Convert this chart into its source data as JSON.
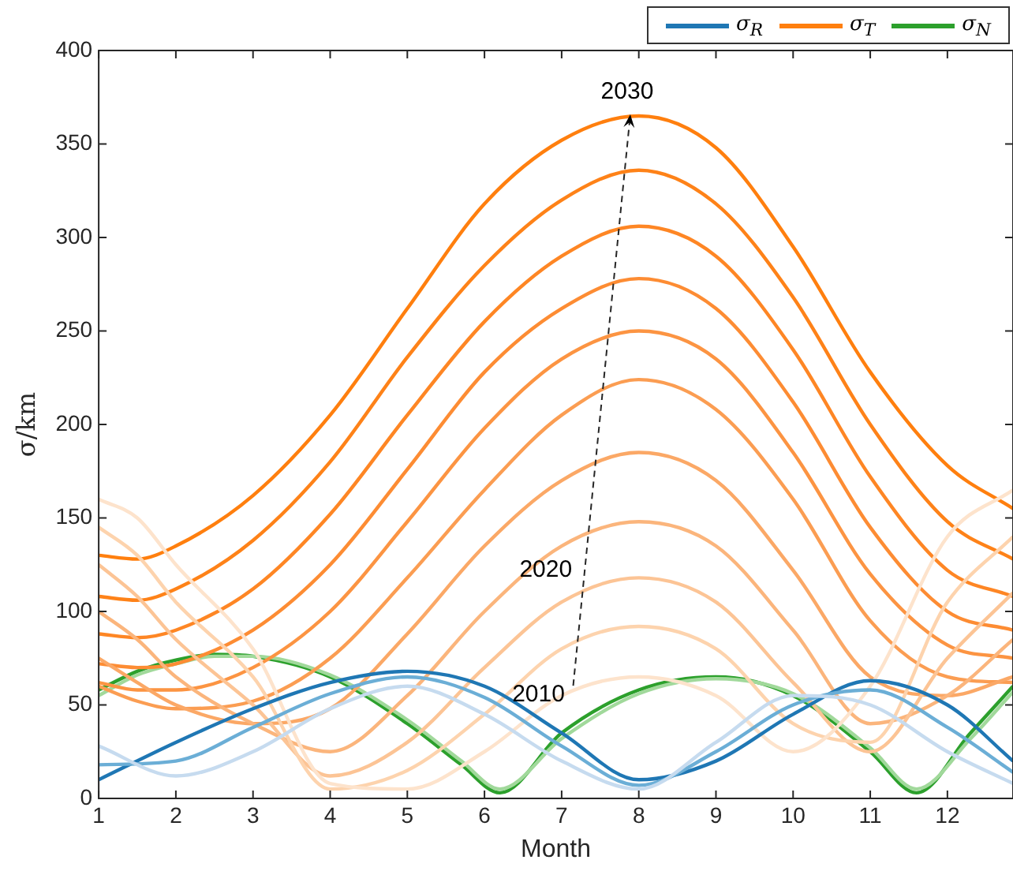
{
  "chart_data": {
    "type": "line",
    "xlabel": "Month",
    "ylabel": "σ/km",
    "xlim": [
      1,
      12.85
    ],
    "ylim": [
      0,
      400
    ],
    "xticks": [
      1,
      2,
      3,
      4,
      5,
      6,
      7,
      8,
      9,
      10,
      11,
      12
    ],
    "yticks": [
      0,
      50,
      100,
      150,
      200,
      250,
      300,
      350,
      400
    ],
    "grid": false,
    "legend": "top right",
    "marker": "none",
    "line_style": "solid",
    "x": [
      1,
      1.5,
      2,
      3,
      4,
      5,
      6,
      7,
      8,
      9,
      10,
      11,
      12,
      12.85
    ],
    "series": [
      {
        "color": "#c6dbef",
        "x": [
          1,
          2,
          3,
          4,
          5,
          6,
          7,
          8,
          9,
          10,
          11,
          12,
          12.85
        ],
        "values": [
          28,
          12,
          25,
          48,
          60,
          45,
          20,
          5,
          30,
          55,
          50,
          25,
          8
        ]
      },
      {
        "color": "#6baed6",
        "x": [
          1,
          2,
          3,
          4,
          5,
          6,
          7,
          8,
          9,
          10,
          11,
          12,
          12.85
        ],
        "values": [
          18,
          20,
          38,
          56,
          65,
          54,
          28,
          7,
          25,
          50,
          58,
          38,
          14
        ]
      },
      {
        "name": "σ$_{R}$",
        "color": "#1f77b4",
        "x": [
          1,
          2,
          3,
          4,
          5,
          6,
          7,
          8,
          9,
          10,
          11,
          12,
          12.85
        ],
        "values": [
          10,
          30,
          48,
          62,
          68,
          60,
          35,
          10,
          20,
          45,
          63,
          50,
          20
        ]
      },
      {
        "color": "#fde3cc",
        "values": [
          160,
          150,
          125,
          80,
          8,
          5,
          25,
          55,
          65,
          55,
          25,
          60,
          140,
          165
        ]
      },
      {
        "color": "#fdd3ad",
        "values": [
          145,
          130,
          105,
          65,
          5,
          15,
          45,
          80,
          92,
          80,
          40,
          30,
          105,
          140
        ]
      },
      {
        "color": "#fcc495",
        "values": [
          125,
          108,
          85,
          50,
          12,
          30,
          70,
          105,
          118,
          105,
          62,
          25,
          75,
          110
        ]
      },
      {
        "color": "#fbb57c",
        "values": [
          100,
          85,
          65,
          40,
          25,
          55,
          100,
          135,
          148,
          135,
          90,
          40,
          55,
          85
        ]
      },
      {
        "color": "#fba866",
        "values": [
          75,
          62,
          50,
          40,
          48,
          88,
          135,
          170,
          185,
          170,
          122,
          65,
          55,
          65
        ]
      },
      {
        "color": "#fb9d52",
        "values": [
          60,
          52,
          48,
          52,
          75,
          118,
          165,
          205,
          224,
          208,
          160,
          95,
          65,
          62
        ]
      },
      {
        "color": "#fc9442",
        "values": [
          62,
          58,
          58,
          70,
          100,
          148,
          198,
          235,
          250,
          235,
          185,
          120,
          82,
          75
        ]
      },
      {
        "color": "#fd8c33",
        "values": [
          72,
          70,
          72,
          90,
          125,
          176,
          228,
          262,
          278,
          262,
          212,
          145,
          100,
          90
        ]
      },
      {
        "color": "#fe8624",
        "values": [
          88,
          86,
          90,
          112,
          152,
          205,
          255,
          290,
          306,
          290,
          240,
          172,
          122,
          108
        ]
      },
      {
        "color": "#fe8218",
        "values": [
          108,
          106,
          112,
          138,
          180,
          236,
          285,
          320,
          336,
          318,
          268,
          200,
          148,
          128
        ]
      },
      {
        "name": "σ$_{T}$",
        "color": "#ff7f0e",
        "values": [
          130,
          128,
          135,
          162,
          205,
          262,
          318,
          352,
          365,
          348,
          295,
          228,
          178,
          155
        ]
      },
      {
        "color": "#a1d99b",
        "x": [
          1,
          1.5,
          2,
          2.5,
          3,
          4,
          5,
          5.7,
          6.2,
          7,
          8,
          9,
          10,
          11,
          11.6,
          12.3,
          12.85
        ],
        "values": [
          55,
          66,
          72,
          76,
          76,
          66,
          42,
          20,
          5,
          32,
          56,
          64,
          56,
          27,
          5,
          32,
          57
        ]
      },
      {
        "name": "σ$_{N}$",
        "color": "#2ca02c",
        "x": [
          1,
          1.5,
          2,
          2.5,
          3,
          4,
          5,
          5.7,
          6.2,
          7,
          8,
          9,
          10,
          11,
          11.6,
          12.3,
          12.85
        ],
        "values": [
          58,
          68,
          74,
          77,
          76,
          65,
          40,
          18,
          3,
          35,
          58,
          65,
          55,
          25,
          3,
          35,
          60
        ]
      }
    ],
    "annotations": [
      "2010",
      "2020",
      "2030"
    ]
  }
}
